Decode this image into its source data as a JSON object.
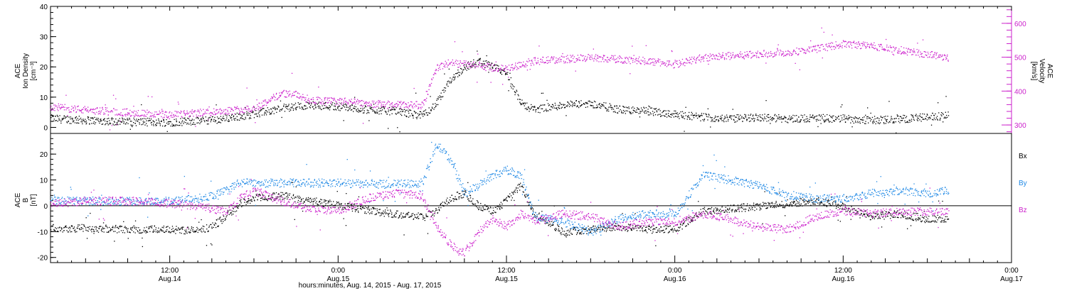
{
  "colors": {
    "bx": "#000000",
    "by": "#1e88e5",
    "bz": "#cc22cc",
    "density": "#000000",
    "velocity": "#cc22cc",
    "axis": "#000000"
  },
  "xaxis": {
    "title": "hours:minutes, Aug. 14, 2015 - Aug. 17, 2015",
    "ticks": [
      {
        "t": 12,
        "time": "12:00",
        "date": "Aug.14"
      },
      {
        "t": 24,
        "time": "0:00",
        "date": "Aug.15"
      },
      {
        "t": 36,
        "time": "12:00",
        "date": "Aug.15"
      },
      {
        "t": 48,
        "time": "0:00",
        "date": "Aug.16"
      },
      {
        "t": 60,
        "time": "12:00",
        "date": "Aug.16"
      },
      {
        "t": 72,
        "time": "0:00",
        "date": "Aug.17"
      }
    ]
  },
  "top_panel": {
    "left_label": [
      "ACE",
      "Ion Density",
      "[cm⁻³]"
    ],
    "right_label": [
      "ACE",
      "Velocity",
      "[km/s]"
    ],
    "left_ticks": [
      "0",
      "10",
      "20",
      "30",
      "40"
    ],
    "right_ticks": [
      "300",
      "400",
      "500",
      "600"
    ]
  },
  "bottom_panel": {
    "left_label": [
      "ACE",
      "B",
      "[nT]"
    ],
    "left_ticks": [
      "-20",
      "-10",
      "0",
      "10",
      "20"
    ],
    "legend": [
      "Bx",
      "By",
      "Bz"
    ]
  },
  "chart_data": [
    {
      "type": "scatter",
      "title": "",
      "xlabel": "hours:minutes, Aug. 14, 2015 - Aug. 17, 2015",
      "x_units": "hours since 2015-08-14 00:00 UT",
      "xlim": [
        3.5,
        72
      ],
      "ylim_left": [
        -2,
        40
      ],
      "ylim_right": [
        275,
        650
      ],
      "series": [
        {
          "name": "Ion Density",
          "axis": "left",
          "x": [
            3.5,
            6,
            9,
            12,
            15,
            18,
            20,
            21,
            22,
            24,
            26,
            28,
            30,
            31,
            32,
            33,
            34,
            35,
            36,
            37,
            38,
            40,
            42,
            44,
            46,
            48,
            50,
            52,
            54,
            56,
            58,
            60,
            62,
            64,
            66,
            67.5
          ],
          "y": [
            3,
            2.5,
            2,
            1.8,
            2.5,
            4.5,
            6.5,
            7,
            7.5,
            7,
            6,
            5.5,
            4,
            8,
            16,
            20,
            22,
            20,
            18,
            8,
            6,
            7.5,
            8,
            6,
            5.5,
            4.5,
            3.5,
            3,
            3.5,
            3,
            3.2,
            3,
            2.5,
            2.8,
            3.5,
            4
          ]
        },
        {
          "name": "Velocity",
          "axis": "right",
          "x": [
            3.5,
            6,
            9,
            12,
            15,
            18,
            20,
            21,
            22,
            24,
            26,
            28,
            30,
            31,
            32,
            33,
            34,
            35,
            36,
            37,
            38,
            40,
            42,
            44,
            46,
            48,
            50,
            52,
            54,
            56,
            58,
            60,
            62,
            64,
            66,
            67.5
          ],
          "y": [
            355,
            345,
            338,
            330,
            340,
            350,
            395,
            390,
            375,
            370,
            365,
            360,
            360,
            470,
            485,
            480,
            475,
            470,
            465,
            480,
            490,
            495,
            500,
            495,
            490,
            480,
            500,
            505,
            510,
            515,
            525,
            540,
            535,
            520,
            510,
            500
          ]
        }
      ]
    },
    {
      "type": "scatter",
      "title": "",
      "xlabel": "hours:minutes, Aug. 14, 2015 - Aug. 17, 2015",
      "x_units": "hours since 2015-08-14 00:00 UT",
      "xlim": [
        3.5,
        72
      ],
      "ylim": [
        -22,
        28
      ],
      "series": [
        {
          "name": "Bx",
          "x": [
            3.5,
            6,
            9,
            12,
            14,
            15,
            16,
            17,
            18,
            20,
            22,
            24,
            26,
            28,
            30,
            31,
            32,
            33,
            34,
            35,
            36,
            37,
            38,
            40,
            42,
            44,
            46,
            48,
            50,
            52,
            54,
            56,
            58,
            60,
            62,
            64,
            66,
            67.5
          ],
          "y": [
            -8.5,
            -8.5,
            -9,
            -9,
            -9.5,
            -8,
            -4,
            1,
            3,
            4,
            2,
            0.5,
            -1.5,
            -3,
            -4,
            -2,
            3,
            5,
            0,
            -2,
            2,
            8,
            -3,
            -10,
            -9,
            -8,
            -9,
            -9,
            -2,
            -1,
            0,
            1,
            2,
            0,
            -4,
            -3,
            -5,
            -5
          ]
        },
        {
          "name": "By",
          "x": [
            3.5,
            6,
            9,
            12,
            14,
            15,
            16,
            17,
            18,
            20,
            22,
            24,
            26,
            28,
            30,
            31,
            32,
            33,
            34,
            35,
            36,
            37,
            38,
            40,
            42,
            44,
            46,
            48,
            50,
            52,
            54,
            56,
            58,
            60,
            62,
            64,
            66,
            67.5
          ],
          "y": [
            2,
            2,
            2,
            2,
            3,
            4,
            6,
            9,
            9,
            9,
            9,
            9,
            8.5,
            8.5,
            9,
            24,
            18,
            5,
            8,
            12,
            14,
            12,
            -4,
            -6,
            -10,
            -5,
            -3,
            -3,
            12,
            10,
            8,
            4,
            3,
            3,
            5,
            6,
            5,
            6
          ]
        },
        {
          "name": "Bz",
          "x": [
            3.5,
            6,
            9,
            12,
            14,
            15,
            16,
            17,
            18,
            20,
            22,
            24,
            26,
            28,
            30,
            31,
            32,
            33,
            34,
            35,
            36,
            37,
            38,
            40,
            42,
            44,
            46,
            48,
            50,
            52,
            54,
            56,
            58,
            60,
            62,
            64,
            66,
            67.5
          ],
          "y": [
            1,
            2,
            2,
            1,
            0,
            -1,
            -2,
            3,
            6,
            2,
            -1,
            -2,
            3,
            5,
            4,
            -8,
            -15,
            -18,
            -10,
            -5,
            -8,
            -3,
            -6,
            -3,
            -4,
            -8,
            -6,
            -6,
            -3,
            -5,
            -8,
            -9,
            -4,
            -2,
            -3,
            -2,
            -2,
            -2
          ]
        }
      ]
    }
  ]
}
